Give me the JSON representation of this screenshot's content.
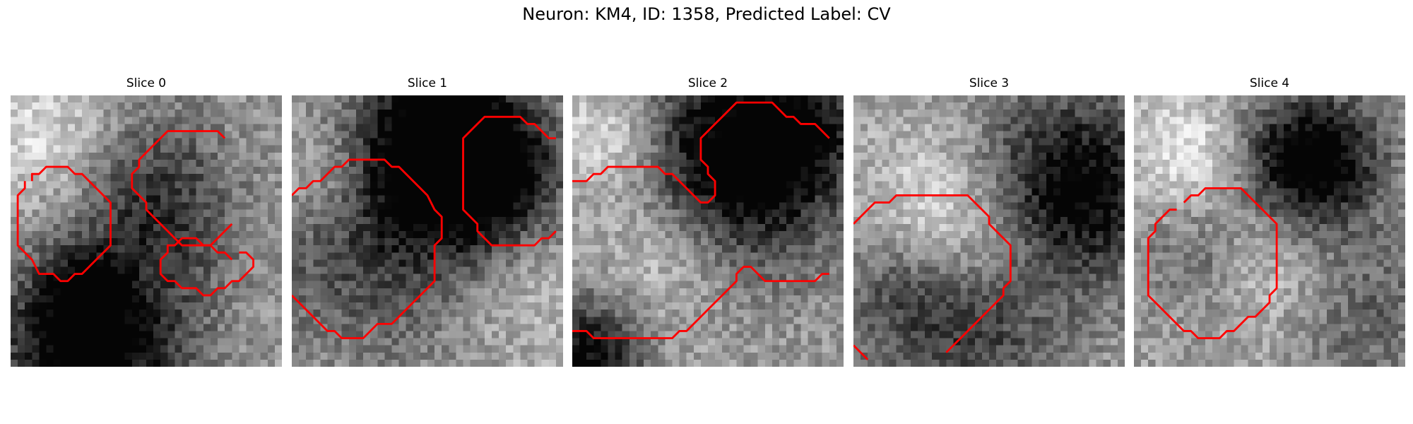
{
  "figure": {
    "title": "Neuron: KM4, ID: 1358, Predicted Label: CV"
  },
  "contour_color": "#ff0000",
  "colormap": "gray",
  "panels": [
    {
      "title": "Slice 0",
      "seed": 11,
      "blobs": [
        [
          0.6,
          0.35,
          0.22,
          -0.55
        ],
        [
          0.3,
          0.93,
          0.25,
          -0.75
        ],
        [
          0.27,
          0.73,
          0.1,
          -0.35
        ],
        [
          0.12,
          0.15,
          0.2,
          0.25
        ],
        [
          0.72,
          0.3,
          0.18,
          0.2
        ]
      ],
      "contours": [
        [
          [
            31,
            23
          ],
          [
            30,
            22
          ],
          [
            29,
            22
          ],
          [
            28,
            21
          ],
          [
            27,
            21
          ],
          [
            26,
            20
          ],
          [
            24,
            20
          ],
          [
            23,
            21
          ],
          [
            22,
            21
          ],
          [
            22,
            22
          ],
          [
            21,
            23
          ],
          [
            21,
            25
          ],
          [
            22,
            26
          ],
          [
            23,
            26
          ],
          [
            24,
            27
          ],
          [
            26,
            27
          ],
          [
            27,
            28
          ],
          [
            28,
            28
          ],
          [
            29,
            27
          ],
          [
            30,
            27
          ],
          [
            31,
            26
          ],
          [
            32,
            26
          ],
          [
            34,
            24
          ],
          [
            34,
            23
          ],
          [
            33,
            22
          ],
          [
            32,
            22
          ]
        ],
        [
          [
            3,
            12
          ],
          [
            3,
            11
          ],
          [
            4,
            11
          ],
          [
            5,
            10
          ],
          [
            8,
            10
          ],
          [
            9,
            11
          ],
          [
            10,
            11
          ],
          [
            11,
            12
          ],
          [
            12,
            13
          ],
          [
            13,
            14
          ],
          [
            14,
            15
          ],
          [
            14,
            21
          ],
          [
            13,
            22
          ],
          [
            12,
            23
          ],
          [
            11,
            24
          ],
          [
            10,
            25
          ],
          [
            9,
            25
          ],
          [
            8,
            26
          ],
          [
            7,
            26
          ],
          [
            6,
            25
          ],
          [
            5,
            25
          ],
          [
            4,
            25
          ],
          [
            3,
            23
          ],
          [
            2,
            22
          ],
          [
            1,
            21
          ],
          [
            1,
            14
          ],
          [
            2,
            13
          ],
          [
            2,
            12
          ]
        ],
        [
          [
            30,
            6
          ],
          [
            29,
            5
          ],
          [
            22,
            5
          ],
          [
            21,
            6
          ],
          [
            20,
            7
          ],
          [
            19,
            8
          ],
          [
            18,
            9
          ],
          [
            18,
            10
          ],
          [
            17,
            11
          ],
          [
            17,
            13
          ],
          [
            18,
            14
          ],
          [
            19,
            15
          ],
          [
            19,
            16
          ],
          [
            20,
            17
          ],
          [
            21,
            18
          ],
          [
            22,
            19
          ],
          [
            23,
            20
          ],
          [
            24,
            21
          ],
          [
            28,
            21
          ],
          [
            29,
            20
          ],
          [
            30,
            19
          ],
          [
            31,
            18
          ]
        ]
      ]
    },
    {
      "title": "Slice 1",
      "seed": 23,
      "blobs": [
        [
          0.55,
          0.15,
          0.2,
          -0.7
        ],
        [
          0.72,
          0.3,
          0.2,
          -0.6
        ],
        [
          0.3,
          0.52,
          0.3,
          -0.4
        ],
        [
          0.85,
          0.7,
          0.2,
          0.15
        ],
        [
          0.1,
          0.3,
          0.15,
          0.25
        ]
      ],
      "contours": [
        [
          [
            0,
            14
          ],
          [
            1,
            13
          ],
          [
            2,
            13
          ],
          [
            3,
            12
          ],
          [
            4,
            12
          ],
          [
            5,
            11
          ],
          [
            6,
            10
          ],
          [
            7,
            10
          ],
          [
            8,
            9
          ],
          [
            13,
            9
          ],
          [
            14,
            10
          ],
          [
            15,
            10
          ],
          [
            16,
            11
          ],
          [
            17,
            12
          ],
          [
            18,
            13
          ],
          [
            19,
            14
          ],
          [
            20,
            16
          ],
          [
            21,
            17
          ],
          [
            21,
            20
          ],
          [
            20,
            21
          ],
          [
            20,
            26
          ],
          [
            19,
            27
          ],
          [
            18,
            28
          ],
          [
            17,
            29
          ],
          [
            16,
            30
          ],
          [
            15,
            31
          ],
          [
            14,
            32
          ],
          [
            12,
            32
          ],
          [
            11,
            33
          ],
          [
            10,
            34
          ],
          [
            7,
            34
          ],
          [
            6,
            33
          ],
          [
            5,
            33
          ],
          [
            4,
            32
          ],
          [
            3,
            31
          ],
          [
            2,
            30
          ],
          [
            1,
            29
          ],
          [
            0,
            28
          ]
        ],
        [
          [
            37,
            6
          ],
          [
            36,
            6
          ],
          [
            35,
            5
          ],
          [
            34,
            4
          ],
          [
            33,
            4
          ],
          [
            32,
            3
          ],
          [
            27,
            3
          ],
          [
            26,
            4
          ],
          [
            25,
            5
          ],
          [
            24,
            6
          ],
          [
            24,
            16
          ],
          [
            25,
            17
          ],
          [
            26,
            18
          ],
          [
            26,
            19
          ],
          [
            27,
            20
          ],
          [
            28,
            21
          ],
          [
            34,
            21
          ],
          [
            35,
            20
          ],
          [
            36,
            20
          ],
          [
            37,
            19
          ]
        ]
      ]
    },
    {
      "title": "Slice 2",
      "seed": 37,
      "blobs": [
        [
          0.6,
          0.25,
          0.28,
          -0.8
        ],
        [
          0.85,
          0.1,
          0.15,
          -0.3
        ],
        [
          0.35,
          0.55,
          0.2,
          0.3
        ],
        [
          0.05,
          0.95,
          0.15,
          -0.6
        ],
        [
          0.15,
          0.15,
          0.15,
          0.35
        ]
      ],
      "contours": [
        [
          [
            0,
            12
          ],
          [
            2,
            12
          ],
          [
            3,
            11
          ],
          [
            4,
            11
          ],
          [
            5,
            10
          ],
          [
            12,
            10
          ],
          [
            13,
            11
          ],
          [
            14,
            11
          ],
          [
            15,
            12
          ],
          [
            16,
            13
          ],
          [
            17,
            14
          ],
          [
            18,
            15
          ],
          [
            19,
            15
          ],
          [
            20,
            14
          ],
          [
            20,
            12
          ],
          [
            19,
            11
          ],
          [
            19,
            10
          ],
          [
            18,
            9
          ],
          [
            18,
            6
          ],
          [
            19,
            5
          ],
          [
            20,
            4
          ],
          [
            21,
            3
          ],
          [
            22,
            2
          ],
          [
            23,
            1
          ],
          [
            28,
            1
          ],
          [
            29,
            2
          ],
          [
            30,
            3
          ],
          [
            31,
            3
          ],
          [
            32,
            4
          ],
          [
            34,
            4
          ],
          [
            35,
            5
          ],
          [
            36,
            6
          ]
        ],
        [
          [
            0,
            33
          ],
          [
            2,
            33
          ],
          [
            3,
            34
          ],
          [
            14,
            34
          ],
          [
            15,
            33
          ],
          [
            16,
            33
          ],
          [
            17,
            32
          ],
          [
            18,
            31
          ],
          [
            19,
            30
          ],
          [
            20,
            29
          ],
          [
            21,
            28
          ],
          [
            22,
            27
          ],
          [
            23,
            26
          ],
          [
            23,
            25
          ],
          [
            24,
            24
          ],
          [
            25,
            24
          ],
          [
            26,
            25
          ],
          [
            27,
            26
          ],
          [
            34,
            26
          ],
          [
            35,
            25
          ],
          [
            36,
            25
          ]
        ]
      ]
    },
    {
      "title": "Slice 3",
      "seed": 53,
      "blobs": [
        [
          0.8,
          0.35,
          0.25,
          -0.7
        ],
        [
          0.5,
          0.9,
          0.2,
          -0.3
        ],
        [
          0.2,
          0.75,
          0.2,
          -0.35
        ],
        [
          0.3,
          0.4,
          0.2,
          0.25
        ],
        [
          0.5,
          0.55,
          0.2,
          0.2
        ]
      ],
      "contours": [
        [
          [
            0,
            18
          ],
          [
            1,
            17
          ],
          [
            2,
            16
          ],
          [
            3,
            15
          ],
          [
            5,
            15
          ],
          [
            6,
            14
          ],
          [
            16,
            14
          ],
          [
            17,
            15
          ],
          [
            18,
            16
          ],
          [
            19,
            17
          ],
          [
            19,
            18
          ],
          [
            20,
            19
          ],
          [
            21,
            20
          ],
          [
            22,
            21
          ],
          [
            22,
            26
          ],
          [
            21,
            27
          ],
          [
            21,
            28
          ],
          [
            20,
            29
          ],
          [
            19,
            30
          ],
          [
            18,
            31
          ],
          [
            17,
            32
          ],
          [
            16,
            33
          ],
          [
            15,
            34
          ],
          [
            14,
            35
          ],
          [
            13,
            36
          ]
        ],
        [
          [
            0,
            35
          ],
          [
            1,
            36
          ],
          [
            2,
            37
          ]
        ]
      ]
    },
    {
      "title": "Slice 4",
      "seed": 71,
      "blobs": [
        [
          0.65,
          0.25,
          0.18,
          -0.8
        ],
        [
          0.25,
          0.6,
          0.15,
          -0.3
        ],
        [
          0.2,
          0.2,
          0.15,
          0.3
        ],
        [
          0.85,
          0.8,
          0.2,
          -0.25
        ],
        [
          0.45,
          0.6,
          0.2,
          0.25
        ]
      ],
      "contours": [
        [
          [
            7,
            15
          ],
          [
            8,
            14
          ],
          [
            9,
            14
          ],
          [
            10,
            13
          ],
          [
            15,
            13
          ],
          [
            16,
            14
          ],
          [
            17,
            15
          ],
          [
            18,
            16
          ],
          [
            19,
            17
          ],
          [
            20,
            18
          ],
          [
            20,
            27
          ],
          [
            19,
            28
          ],
          [
            19,
            29
          ],
          [
            18,
            30
          ],
          [
            17,
            31
          ],
          [
            16,
            31
          ],
          [
            15,
            32
          ],
          [
            14,
            33
          ],
          [
            13,
            33
          ],
          [
            12,
            34
          ],
          [
            9,
            34
          ],
          [
            8,
            33
          ],
          [
            7,
            33
          ],
          [
            6,
            32
          ],
          [
            5,
            31
          ],
          [
            4,
            30
          ],
          [
            3,
            29
          ],
          [
            2,
            28
          ],
          [
            2,
            20
          ],
          [
            3,
            19
          ],
          [
            3,
            18
          ],
          [
            4,
            17
          ],
          [
            5,
            16
          ],
          [
            6,
            16
          ]
        ]
      ]
    }
  ]
}
